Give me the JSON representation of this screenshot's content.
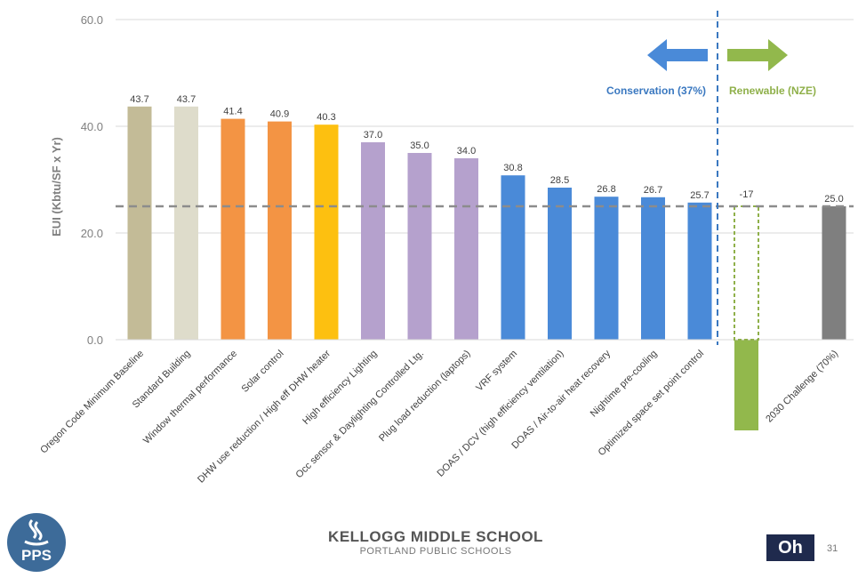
{
  "chart_data": {
    "type": "bar",
    "ylabel": "EUI (Kbtu/SF  x Yr)",
    "ylim": [
      0,
      60
    ],
    "yticks": [
      "0.0",
      "20.0",
      "40.0",
      "60.0"
    ],
    "grid": true,
    "reference_line": 25.0,
    "categories": [
      "Oregon Code Minimum Baseline",
      "Standard Building",
      "Window thermal performance",
      "Solar control",
      "DHW use reduction / High eff DHW heater",
      "High efficiency Lighting",
      "Occ sensor & Daylighting Controlled Ltg.",
      "Plug load reduction (laptops)",
      "VRF system",
      "DOAS / DCV (high efficiency ventilation)",
      "DOAS / Air-to-air heat recovery",
      "Nightime pre-cooling",
      "Optimized space set point control",
      "",
      "2030 Challenge (70%)"
    ],
    "values": [
      43.7,
      43.7,
      41.4,
      40.9,
      40.3,
      37.0,
      35.0,
      34.0,
      30.8,
      28.5,
      26.8,
      26.7,
      25.7,
      -17,
      25.0
    ],
    "value_labels": [
      "43.7",
      "43.7",
      "41.4",
      "40.9",
      "40.3",
      "37.0",
      "35.0",
      "34.0",
      "30.8",
      "28.5",
      "26.8",
      "26.7",
      "25.7",
      "-17",
      "25.0"
    ],
    "colors": [
      "#c3bb97",
      "#dedccb",
      "#f39444",
      "#f39444",
      "#fdc010",
      "#b5a1cd",
      "#b5a1cd",
      "#b5a1cd",
      "#4a8ad8",
      "#4a8ad8",
      "#4a8ad8",
      "#4a8ad8",
      "#4a8ad8",
      "#92b84c",
      "#7f7f7f"
    ],
    "renewable_outline_value": 25.0,
    "annotations": {
      "conservation": "Conservation (37%)",
      "renewable": "Renewable (NZE)"
    }
  },
  "footer": {
    "title": "KELLOGG MIDDLE SCHOOL",
    "subtitle": "PORTLAND PUBLIC SCHOOLS",
    "logo_text": "PPS",
    "badge": "Oh",
    "page_number": "31"
  },
  "colors": {
    "conservation": "#3a78c0",
    "renewable": "#8fb04a",
    "reference": "#8c8c8c",
    "badge_bg": "#1f2a4d"
  }
}
